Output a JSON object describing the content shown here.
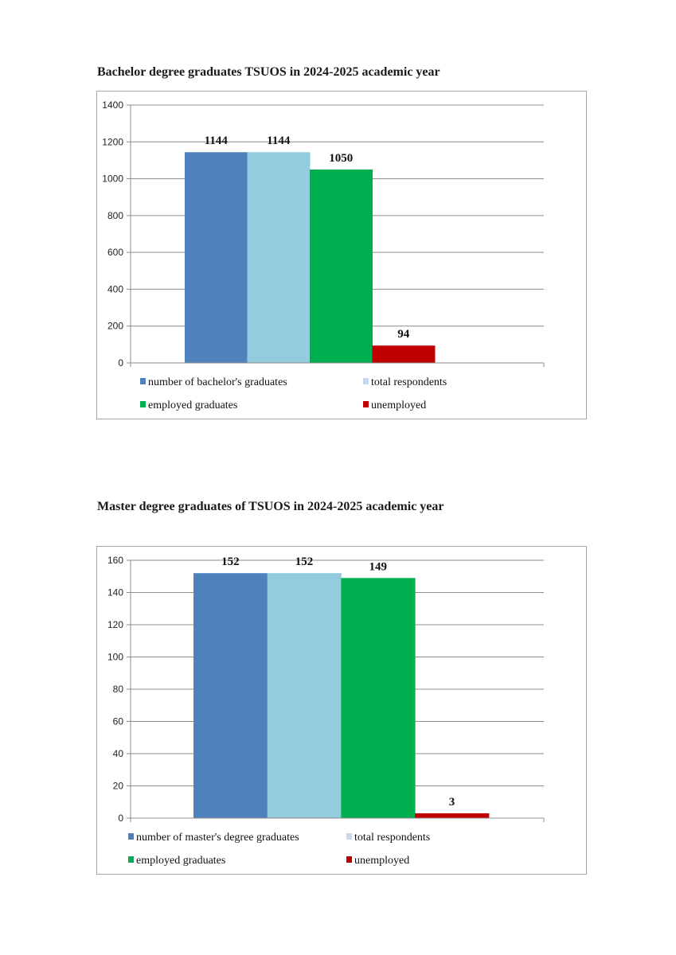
{
  "chart_data": [
    {
      "type": "bar",
      "title": "Bachelor degree graduates TSUOS in 2024-2025 academic year",
      "categories": [
        "number of bachelor's graduates",
        "total respondents",
        "employed graduates",
        "unemployed"
      ],
      "values": [
        1144,
        1144,
        1050,
        94
      ],
      "data_labels": [
        "1144",
        "1144",
        "1050",
        "94"
      ],
      "colors": [
        "#4f81bd",
        "#93cddd",
        "#00b050",
        "#c00000"
      ],
      "legend_colors": [
        "#4f81bd",
        "#c6d9f1",
        "#00b050",
        "#c00000"
      ],
      "ylim": [
        0,
        1400
      ],
      "yticks": [
        0,
        200,
        400,
        600,
        800,
        1000,
        1200,
        1400
      ],
      "xlabel": "",
      "ylabel": "",
      "grid": true,
      "legend": "bottom"
    },
    {
      "type": "bar",
      "title": "Master degree graduates of TSUOS in 2024-2025 academic year",
      "categories": [
        "number of master's degree graduates",
        "total respondents",
        "employed graduates",
        "unemployed"
      ],
      "values": [
        152,
        152,
        149,
        3
      ],
      "data_labels": [
        "152",
        "152",
        "149",
        "3"
      ],
      "colors": [
        "#4f81bd",
        "#93cddd",
        "#00b050",
        "#c00000"
      ],
      "legend_colors": [
        "#4f81bd",
        "#c6d9f1",
        "#00b050",
        "#c00000"
      ],
      "ylim": [
        0,
        160
      ],
      "yticks": [
        0,
        20,
        40,
        60,
        80,
        100,
        120,
        140,
        160
      ],
      "xlabel": "",
      "ylabel": "",
      "grid": true,
      "legend": "bottom"
    }
  ]
}
